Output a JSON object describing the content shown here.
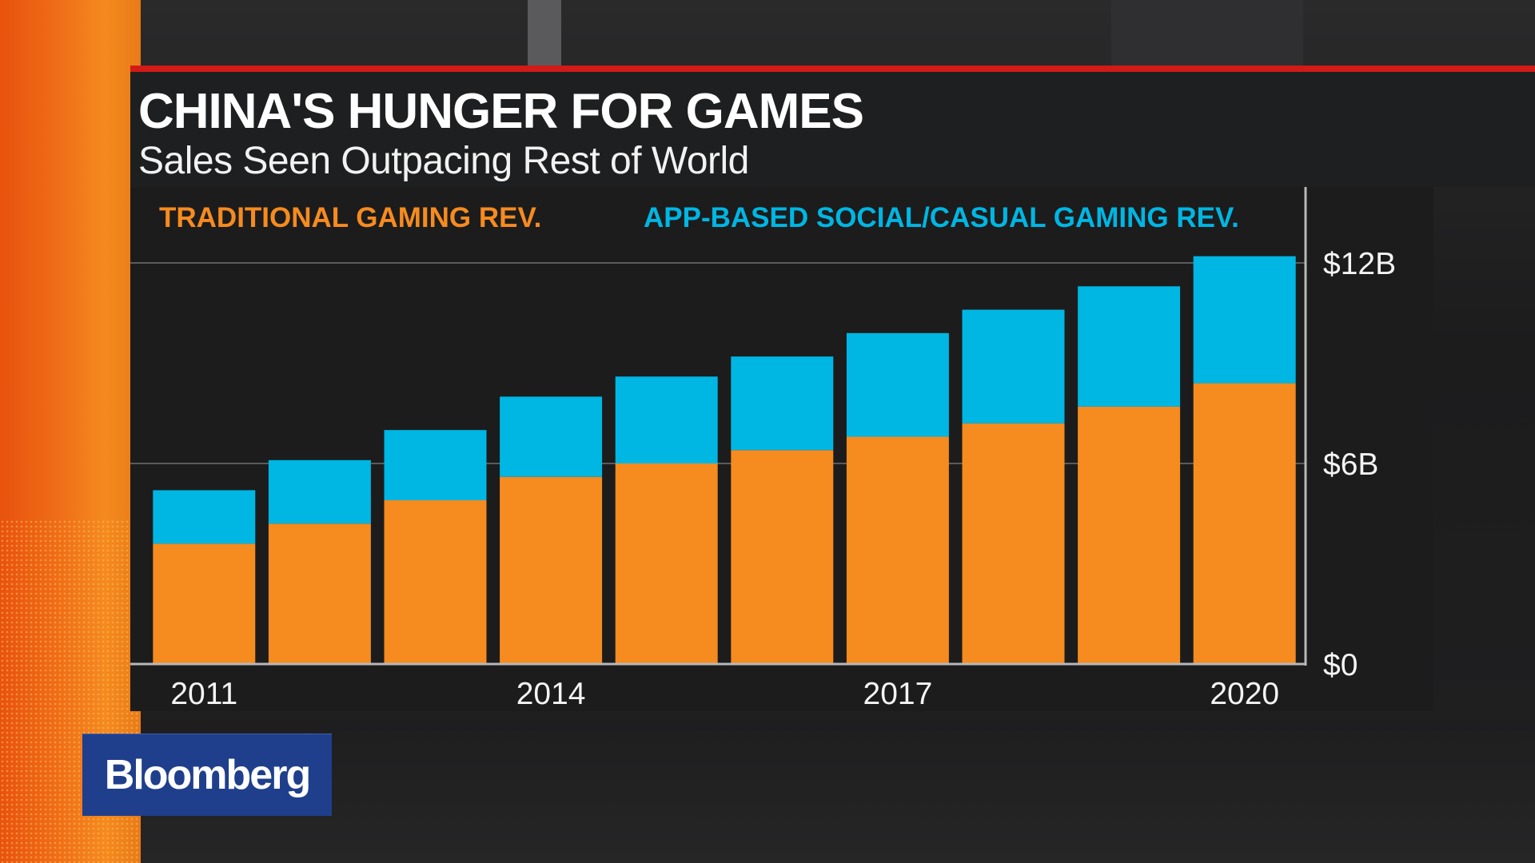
{
  "header": {
    "title": "CHINA'S HUNGER FOR GAMES",
    "subtitle": "Sales Seen Outpacing Rest of World"
  },
  "logo": {
    "text": "Bloomberg"
  },
  "colors": {
    "traditional": "#f68b1f",
    "app_based": "#00b6e3",
    "header_rule": "#d21a17",
    "logo_bg": "#1f3f8c"
  },
  "chart_data": {
    "type": "bar",
    "stacked": true,
    "title": "",
    "xlabel": "",
    "ylabel": "",
    "categories": [
      "2011",
      "2012",
      "2013",
      "2014",
      "2015",
      "2016",
      "2017",
      "2018",
      "2019",
      "2020"
    ],
    "x_tick_labels": [
      "2011",
      "2014",
      "2017",
      "2020"
    ],
    "y_ticks": [
      {
        "value": 0,
        "label": "$0"
      },
      {
        "value": 6,
        "label": "$6B"
      },
      {
        "value": 12,
        "label": "$12B"
      }
    ],
    "ylim": [
      0,
      12
    ],
    "y_unit": "billion USD",
    "grid": true,
    "legend_position": "top",
    "series": [
      {
        "name": "TRADITIONAL GAMING REV.",
        "color": "#f68b1f",
        "values": [
          3.6,
          4.2,
          4.9,
          5.6,
          6.0,
          6.4,
          6.8,
          7.2,
          7.7,
          8.4
        ]
      },
      {
        "name": "APP-BASED SOCIAL/CASUAL GAMING REV.",
        "color": "#00b6e3",
        "values": [
          1.6,
          1.9,
          2.1,
          2.4,
          2.6,
          2.8,
          3.1,
          3.4,
          3.6,
          3.8
        ]
      }
    ]
  }
}
